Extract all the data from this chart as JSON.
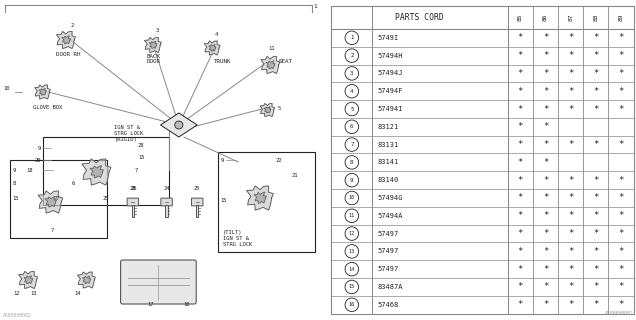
{
  "bg_color": "#ffffff",
  "table_header": "PARTS CORD",
  "col_headers": [
    "85",
    "86",
    "87",
    "88",
    "89"
  ],
  "rows": [
    {
      "num": 1,
      "part": "5749I",
      "marks": [
        true,
        true,
        true,
        true,
        true
      ]
    },
    {
      "num": 2,
      "part": "57494H",
      "marks": [
        true,
        true,
        true,
        true,
        true
      ]
    },
    {
      "num": 3,
      "part": "57494J",
      "marks": [
        true,
        true,
        true,
        true,
        true
      ]
    },
    {
      "num": 4,
      "part": "57494F",
      "marks": [
        true,
        true,
        true,
        true,
        true
      ]
    },
    {
      "num": 5,
      "part": "57494I",
      "marks": [
        true,
        true,
        true,
        true,
        true
      ]
    },
    {
      "num": 6,
      "part": "83121",
      "marks": [
        true,
        true,
        false,
        false,
        false
      ]
    },
    {
      "num": 7,
      "part": "83131",
      "marks": [
        true,
        true,
        true,
        true,
        true
      ]
    },
    {
      "num": 8,
      "part": "83141",
      "marks": [
        true,
        true,
        false,
        false,
        false
      ]
    },
    {
      "num": 9,
      "part": "83140",
      "marks": [
        true,
        true,
        true,
        true,
        true
      ]
    },
    {
      "num": 10,
      "part": "57494G",
      "marks": [
        true,
        true,
        true,
        true,
        true
      ]
    },
    {
      "num": 11,
      "part": "57494A",
      "marks": [
        true,
        true,
        true,
        true,
        true
      ]
    },
    {
      "num": 12,
      "part": "57497",
      "marks": [
        true,
        true,
        true,
        true,
        true
      ]
    },
    {
      "num": 13,
      "part": "57497",
      "marks": [
        true,
        true,
        true,
        true,
        true
      ]
    },
    {
      "num": 14,
      "part": "57497",
      "marks": [
        true,
        true,
        true,
        true,
        true
      ]
    },
    {
      "num": 15,
      "part": "83487A",
      "marks": [
        true,
        true,
        true,
        true,
        true
      ]
    },
    {
      "num": 16,
      "part": "57468",
      "marks": [
        true,
        true,
        true,
        true,
        true
      ]
    }
  ],
  "footer_code": "A580000082",
  "lc": "#888888",
  "tc": "#333333",
  "dark": "#222222",
  "diagram_labels": {
    "door_rh": "DOOR RH",
    "back_door": "BACK\nDOOR",
    "trunk": "TRUNK",
    "glove_box": "GLOVE BOX",
    "ign_rigid": "IGN ST &\nSTRG LOCK\n(RIGID)",
    "seat": "SEAT",
    "ign_tilt_label": "(TILT)\nIGN ST &\nSTRG LOCK"
  }
}
